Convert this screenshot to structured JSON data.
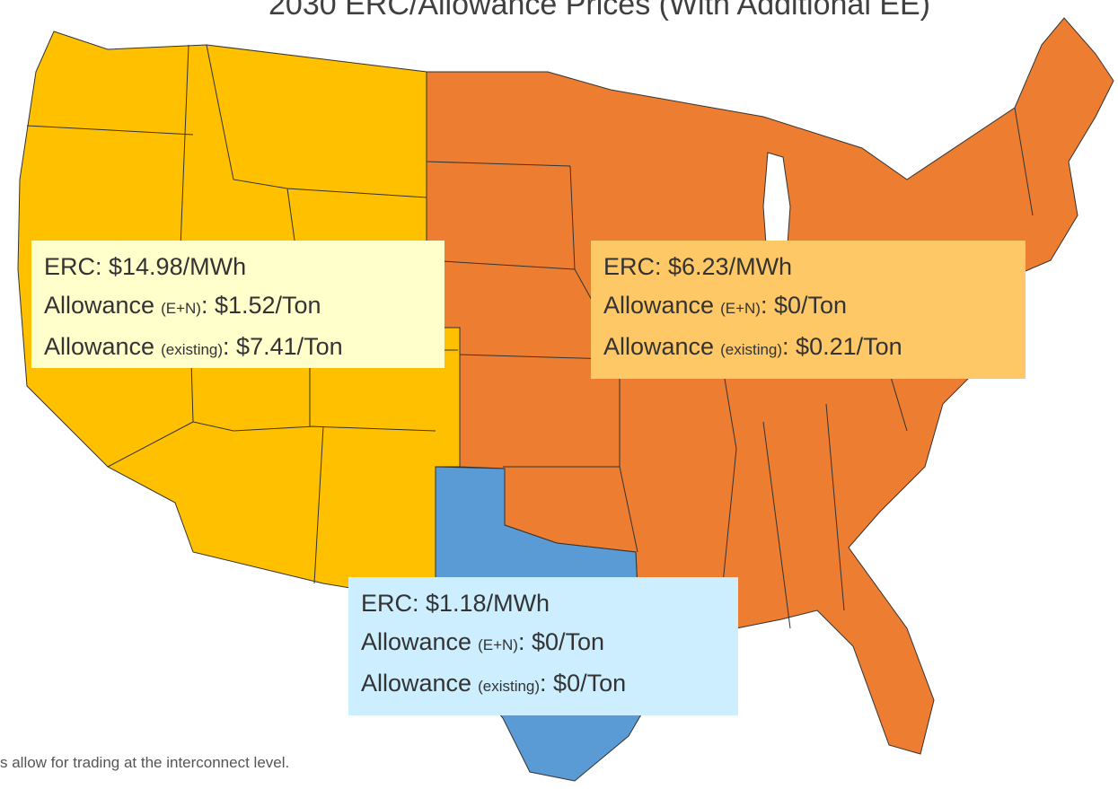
{
  "title": "2030 ERC/Allowance Prices (With Additional EE)",
  "regions": [
    {
      "erc": "ERC: $14.98/MWh",
      "allowance_en": {
        "label": "Allowance",
        "qualifier": "(E+N)",
        "value": ": $1.52/Ton"
      },
      "allowance_existing": {
        "label": "Allowance",
        "qualifier": "(existing)",
        "value": ": $7.41/Ton"
      }
    },
    {
      "erc": "ERC: $6.23/MWh",
      "allowance_en": {
        "label": "Allowance",
        "qualifier": "(E+N)",
        "value": ": $0/Ton"
      },
      "allowance_existing": {
        "label": "Allowance",
        "qualifier": "(existing)",
        "value": ": $0.21/Ton"
      }
    },
    {
      "erc": "ERC: $1.18/MWh",
      "allowance_en": {
        "label": "Allowance",
        "qualifier": "(E+N)",
        "value": ": $0/Ton"
      },
      "allowance_existing": {
        "label": "Allowance",
        "qualifier": "(existing)",
        "value": ": $0/Ton"
      }
    }
  ],
  "footnote": "s allow for trading at the interconnect level."
}
